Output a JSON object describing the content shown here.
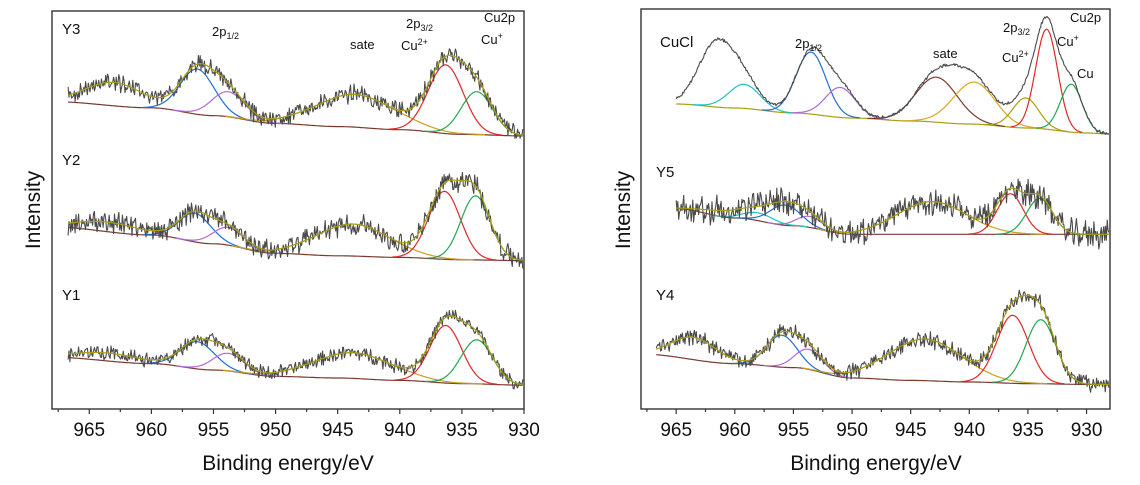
{
  "chart_data": [
    {
      "type": "line",
      "panel": "left",
      "xlabel": "Binding energy/eV",
      "ylabel": "Intensity",
      "xlim": [
        968,
        930
      ],
      "xticks": [
        965,
        960,
        955,
        950,
        945,
        940,
        935,
        930
      ],
      "xtick_labels": [
        "965",
        "960",
        "955",
        "950",
        "945",
        "940",
        "935",
        "930"
      ],
      "yticks_shown": false,
      "grid": false,
      "annotations": [
        {
          "text": "2p",
          "sub": "1/2",
          "near_x": 953
        },
        {
          "text": "sate",
          "near_x": 943
        },
        {
          "text": "Cu",
          "sup": "2+",
          "near_x": 937.5
        },
        {
          "text": "2p",
          "sub": "3/2",
          "near_x": 936.5
        },
        {
          "text": "Cu2p",
          "near_x": 931.5
        },
        {
          "text": "Cu",
          "sup": "+",
          "near_x": 932.5
        }
      ],
      "series": [
        {
          "name": "Y3",
          "offset": 2.0,
          "noise": 0.09,
          "seed": 3,
          "background": [
            [
              968,
              0.3
            ],
            [
              960,
              0.22
            ],
            [
              955,
              0.12
            ],
            [
              950,
              0.02
            ],
            [
              945,
              -0.02
            ],
            [
              940,
              -0.06
            ],
            [
              935,
              -0.12
            ],
            [
              930,
              -0.14
            ]
          ],
          "peaks": [
            {
              "name": "hump",
              "center": 963.0,
              "height": 0.3,
              "fwhm": 5.5,
              "color": "#a8a012",
              "fit_only": true
            },
            {
              "name": "2p1/2 Cu+",
              "center": 956.3,
              "height": 0.58,
              "fwhm": 3.2,
              "color": "#1f6fd1"
            },
            {
              "name": "2p1/2 Cu2+",
              "center": 953.8,
              "height": 0.32,
              "fwhm": 3.2,
              "color": "#b06ad8"
            },
            {
              "name": "satellite",
              "center": 943.6,
              "height": 0.42,
              "fwhm": 7.5,
              "color": "#c8a020"
            },
            {
              "name": "Cu2+",
              "center": 936.3,
              "height": 0.88,
              "fwhm": 3.3,
              "color": "#e02828"
            },
            {
              "name": "Cu+",
              "center": 933.8,
              "height": 0.55,
              "fwhm": 3.0,
              "color": "#1fa850"
            }
          ]
        },
        {
          "name": "Y2",
          "offset": 1.0,
          "noise": 0.11,
          "seed": 7,
          "background": [
            [
              968,
              0.35
            ],
            [
              960,
              0.25
            ],
            [
              955,
              0.14
            ],
            [
              950,
              0.02
            ],
            [
              945,
              -0.01
            ],
            [
              940,
              -0.03
            ],
            [
              935,
              -0.06
            ],
            [
              930,
              -0.07
            ]
          ],
          "peaks": [
            {
              "name": "hump",
              "center": 963.5,
              "height": 0.12,
              "fwhm": 6.0,
              "color": "#a8a012",
              "fit_only": true
            },
            {
              "name": "2p1/2 Cu+",
              "center": 956.5,
              "height": 0.36,
              "fwhm": 3.0,
              "color": "#1f6fd1"
            },
            {
              "name": "2p1/2 Cu2+",
              "center": 953.8,
              "height": 0.22,
              "fwhm": 3.0,
              "color": "#b06ad8"
            },
            {
              "name": "satellite",
              "center": 943.8,
              "height": 0.4,
              "fwhm": 7.0,
              "color": "#c8a020"
            },
            {
              "name": "Cu2+",
              "center": 936.4,
              "height": 0.85,
              "fwhm": 3.0,
              "color": "#e02828"
            },
            {
              "name": "Cu+",
              "center": 933.9,
              "height": 0.8,
              "fwhm": 2.8,
              "color": "#1fa850"
            }
          ]
        },
        {
          "name": "Y1",
          "offset": 0.0,
          "noise": 0.07,
          "seed": 11,
          "background": [
            [
              968,
              0.26
            ],
            [
              960,
              0.18
            ],
            [
              955,
              0.1
            ],
            [
              950,
              0.02
            ],
            [
              945,
              0.0
            ],
            [
              940,
              -0.03
            ],
            [
              935,
              -0.07
            ],
            [
              930,
              -0.09
            ]
          ],
          "peaks": [
            {
              "name": "hump",
              "center": 963.5,
              "height": 0.1,
              "fwhm": 6.0,
              "color": "#a8a012",
              "fit_only": true
            },
            {
              "name": "2p1/2 Cu+",
              "center": 956.3,
              "height": 0.34,
              "fwhm": 3.2,
              "color": "#1f6fd1"
            },
            {
              "name": "2p1/2 Cu2+",
              "center": 953.8,
              "height": 0.22,
              "fwhm": 3.0,
              "color": "#b06ad8"
            },
            {
              "name": "satellite",
              "center": 943.8,
              "height": 0.32,
              "fwhm": 7.5,
              "color": "#c8a020"
            },
            {
              "name": "Cu2+",
              "center": 936.3,
              "height": 0.72,
              "fwhm": 3.0,
              "color": "#e02828"
            },
            {
              "name": "Cu+",
              "center": 933.8,
              "height": 0.55,
              "fwhm": 3.0,
              "color": "#1fa850"
            }
          ]
        }
      ]
    },
    {
      "type": "line",
      "panel": "right",
      "xlabel": "Binding energy/eV",
      "ylabel": "Intensity",
      "xlim": [
        968,
        928
      ],
      "xticks": [
        965,
        960,
        955,
        950,
        945,
        940,
        935,
        930
      ],
      "xtick_labels": [
        "965",
        "960",
        "955",
        "950",
        "945",
        "940",
        "935",
        "930"
      ],
      "yticks_shown": false,
      "grid": false,
      "annotations": [
        {
          "text": "2p",
          "sub": "1/2",
          "near_x": 953
        },
        {
          "text": "sate",
          "near_x": 941.5
        },
        {
          "text": "Cu",
          "sup": "2+",
          "near_x": 936
        },
        {
          "text": "2p",
          "sub": "3/2",
          "near_x": 935.5
        },
        {
          "text": "Cu2p",
          "near_x": 930.5
        },
        {
          "text": "Cu",
          "sup": "+",
          "near_x": 931.5
        },
        {
          "text": "Cu",
          "near_x": 930.5
        }
      ],
      "series": [
        {
          "name": "CuCl",
          "offset": 2.0,
          "noise": 0.012,
          "seed": 5,
          "background": [
            [
              965,
              0.18
            ],
            [
              960,
              0.14
            ],
            [
              955,
              0.09
            ],
            [
              950,
              0.04
            ],
            [
              945,
              0.01
            ],
            [
              940,
              -0.02
            ],
            [
              935,
              -0.06
            ],
            [
              930,
              -0.11
            ],
            [
              928,
              -0.12
            ]
          ],
          "background_color": "#a8a012",
          "peaks": [
            {
              "name": "hump",
              "center": 961.6,
              "height": 0.62,
              "fwhm": 3.6,
              "color": "#a8a012",
              "raw_only": true
            },
            {
              "name": "cyan",
              "center": 959.2,
              "height": 0.24,
              "fwhm": 3.2,
              "color": "#22c0c0"
            },
            {
              "name": "2p1/2 Cu+",
              "center": 953.5,
              "height": 0.62,
              "fwhm": 3.0,
              "color": "#1f6fd1"
            },
            {
              "name": "2p1/2 Cu2+",
              "center": 951.0,
              "height": 0.3,
              "fwhm": 3.0,
              "color": "#b06ad8"
            },
            {
              "name": "satellite 1",
              "center": 942.8,
              "height": 0.45,
              "fwhm": 4.2,
              "color": "#7a3a30"
            },
            {
              "name": "satellite 2",
              "center": 939.6,
              "height": 0.42,
              "fwhm": 4.2,
              "color": "#d8a820"
            },
            {
              "name": "Cu2+",
              "center": 935.2,
              "height": 0.3,
              "fwhm": 2.6,
              "color": "#a8a012"
            },
            {
              "name": "Cu+",
              "center": 933.4,
              "height": 1.0,
              "fwhm": 2.2,
              "color": "#e02828"
            },
            {
              "name": "Cu",
              "center": 931.3,
              "height": 0.48,
              "fwhm": 2.2,
              "color": "#1fa850"
            }
          ]
        },
        {
          "name": "Y5",
          "offset": 1.0,
          "noise": 0.14,
          "seed": 13,
          "background": [
            [
              965,
              0.3
            ],
            [
              960,
              0.18
            ],
            [
              955,
              0.08
            ],
            [
              950,
              -0.03
            ],
            [
              945,
              -0.03
            ],
            [
              940,
              -0.03
            ],
            [
              935,
              -0.03
            ],
            [
              928,
              -0.03
            ]
          ],
          "peaks": [
            {
              "name": "hump",
              "center": 960.5,
              "height": 0.08,
              "fwhm": 4.5,
              "color": "#a8a012",
              "fit_only": true
            },
            {
              "name": "cyan",
              "center": 958.0,
              "height": 0.1,
              "fwhm": 3.0,
              "color": "#22c0c0"
            },
            {
              "name": "2p1/2 Cu+",
              "center": 955.7,
              "height": 0.26,
              "fwhm": 3.0,
              "color": "#1f6fd1"
            },
            {
              "name": "2p1/2 Cu2+",
              "center": 953.6,
              "height": 0.14,
              "fwhm": 2.6,
              "color": "#b06ad8"
            },
            {
              "name": "satellite",
              "center": 943.2,
              "height": 0.42,
              "fwhm": 7.0,
              "color": "#c8a020"
            },
            {
              "name": "Cu2+",
              "center": 936.5,
              "height": 0.52,
              "fwhm": 2.6,
              "color": "#e02828"
            },
            {
              "name": "Cu+",
              "center": 934.0,
              "height": 0.46,
              "fwhm": 2.6,
              "color": "#1fa850"
            }
          ]
        },
        {
          "name": "Y4",
          "offset": 0.0,
          "noise": 0.08,
          "seed": 17,
          "background": [
            [
              968,
              0.3
            ],
            [
              960,
              0.18
            ],
            [
              955,
              0.13
            ],
            [
              950,
              0.0
            ],
            [
              945,
              -0.03
            ],
            [
              940,
              -0.05
            ],
            [
              935,
              -0.07
            ],
            [
              930,
              -0.08
            ],
            [
              928,
              -0.08
            ]
          ],
          "peaks": [
            {
              "name": "hump",
              "center": 963.5,
              "height": 0.28,
              "fwhm": 4.5,
              "color": "#a8a012",
              "fit_only": true
            },
            {
              "name": "2p1/2 Cu+",
              "center": 956.0,
              "height": 0.4,
              "fwhm": 3.0,
              "color": "#1f6fd1"
            },
            {
              "name": "2p1/2 Cu2+",
              "center": 953.7,
              "height": 0.25,
              "fwhm": 2.8,
              "color": "#b06ad8"
            },
            {
              "name": "satellite",
              "center": 943.8,
              "height": 0.52,
              "fwhm": 7.5,
              "color": "#c8a020"
            },
            {
              "name": "Cu2+",
              "center": 936.3,
              "height": 0.85,
              "fwhm": 3.2,
              "color": "#e02828"
            },
            {
              "name": "Cu+",
              "center": 933.9,
              "height": 0.8,
              "fwhm": 3.0,
              "color": "#1fa850"
            }
          ]
        }
      ]
    }
  ],
  "ui": {
    "left": {
      "ylabel": "Intensity",
      "xlabel": "Binding energy/eV",
      "labels": {
        "p12": "2p",
        "p12sub": "1/2",
        "sate": "sate",
        "cu2": "Cu",
        "cu2sup": "2+",
        "p32": "2p",
        "p32sub": "3/2",
        "cu2p": "Cu2p",
        "cu1": "Cu",
        "cu1sup": "+"
      }
    },
    "right": {
      "ylabel": "Intensity",
      "xlabel": "Binding energy/eV",
      "labels": {
        "p12": "2p",
        "p12sub": "1/2",
        "sate": "sate",
        "cu2": "Cu",
        "cu2sup": "2+",
        "p32": "2p",
        "p32sub": "3/2",
        "cu2p": "Cu2p",
        "cu1": "Cu",
        "cu1sup": "+",
        "cu0": "Cu"
      }
    },
    "colors": {
      "raw": "#4a4a4a",
      "envelope": "#a8a012",
      "background": "#7a3a30",
      "frame": "#333333"
    }
  }
}
